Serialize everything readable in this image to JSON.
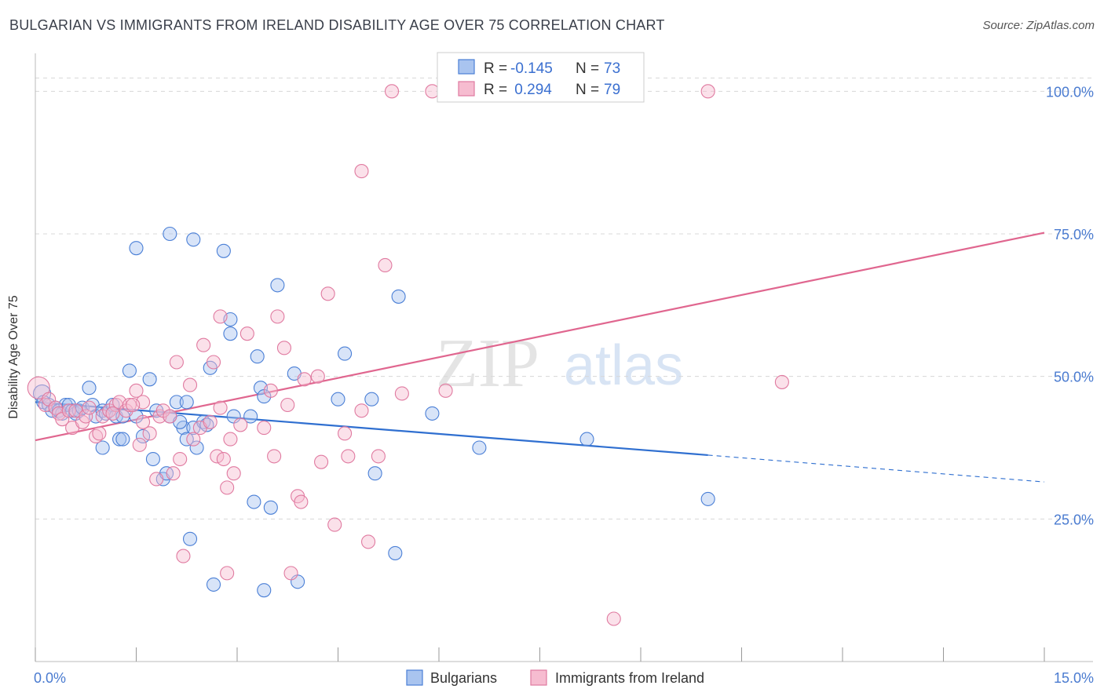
{
  "header": {
    "title": "BULGARIAN VS IMMIGRANTS FROM IRELAND DISABILITY AGE OVER 75 CORRELATION CHART",
    "source": "Source: ZipAtlas.com"
  },
  "watermark": {
    "zip": "ZIP",
    "atlas": "atlas"
  },
  "colors": {
    "blue": "#4a7fd6",
    "blue_fill": "#a9c4ef",
    "blue_line": "#2f6fd0",
    "pink": "#e07aa0",
    "pink_fill": "#f6bcd0",
    "pink_line": "#e0668f",
    "axis_text": "#4a7bd0",
    "grid": "#d8d8d8"
  },
  "legend_box": {
    "rows": [
      {
        "r_label": "R = ",
        "r_value": "-0.145",
        "n_label": "N = ",
        "n_value": "73",
        "series": "blue"
      },
      {
        "r_label": "R = ",
        "r_value": " 0.294",
        "n_label": "N = ",
        "n_value": "79",
        "series": "pink"
      }
    ]
  },
  "chart_data": {
    "type": "scatter",
    "xlabel": "",
    "ylabel": "Disability Age Over 75",
    "xlim": [
      0,
      15
    ],
    "ylim": [
      0,
      105
    ],
    "x_tick_labels": [
      "0.0%",
      "15.0%"
    ],
    "y_ticks": [
      25,
      50,
      75,
      100
    ],
    "y_tick_labels": [
      "25.0%",
      "50.0%",
      "75.0%",
      "100.0%"
    ],
    "grid": true,
    "legend_position": "bottom",
    "series": [
      {
        "name": "Bulgarians",
        "color": "blue",
        "trend": {
          "x0": 0,
          "y0": 45.5,
          "x1": 10.0,
          "y1": 36.2,
          "dash_to_x": 15,
          "dash_to_y": 31.5
        },
        "points": [
          [
            0.1,
            47
          ],
          [
            0.12,
            45.5
          ],
          [
            0.2,
            45
          ],
          [
            0.25,
            44
          ],
          [
            0.3,
            44.5
          ],
          [
            0.35,
            44
          ],
          [
            0.4,
            43.5
          ],
          [
            0.45,
            45
          ],
          [
            0.5,
            45
          ],
          [
            0.55,
            44
          ],
          [
            0.6,
            43.5
          ],
          [
            0.65,
            44
          ],
          [
            0.7,
            44.5
          ],
          [
            0.8,
            48
          ],
          [
            0.85,
            45
          ],
          [
            0.9,
            43
          ],
          [
            1.0,
            44
          ],
          [
            1.05,
            43.5
          ],
          [
            1.1,
            44
          ],
          [
            1.15,
            45
          ],
          [
            1.2,
            43
          ],
          [
            1.25,
            39
          ],
          [
            1.3,
            43
          ],
          [
            1.4,
            51
          ],
          [
            1.3,
            39
          ],
          [
            1.0,
            37.5
          ],
          [
            1.5,
            43
          ],
          [
            1.6,
            39.5
          ],
          [
            1.5,
            72.5
          ],
          [
            1.7,
            49.5
          ],
          [
            1.75,
            35.5
          ],
          [
            1.8,
            44
          ],
          [
            1.9,
            32
          ],
          [
            1.95,
            33
          ],
          [
            2.0,
            43
          ],
          [
            2.1,
            45.5
          ],
          [
            2.2,
            41
          ],
          [
            2.15,
            42
          ],
          [
            2.25,
            39
          ],
          [
            2.35,
            41
          ],
          [
            2.4,
            37.5
          ],
          [
            2.0,
            75
          ],
          [
            2.3,
            21.5
          ],
          [
            2.35,
            74
          ],
          [
            2.25,
            45.5
          ],
          [
            2.5,
            42
          ],
          [
            2.55,
            41.5
          ],
          [
            2.6,
            51.5
          ],
          [
            2.8,
            72
          ],
          [
            2.9,
            60
          ],
          [
            2.9,
            57.5
          ],
          [
            2.95,
            43
          ],
          [
            3.2,
            43
          ],
          [
            3.25,
            28
          ],
          [
            3.3,
            53.5
          ],
          [
            3.35,
            48
          ],
          [
            3.4,
            46.5
          ],
          [
            3.5,
            27
          ],
          [
            3.6,
            66
          ],
          [
            3.85,
            50.5
          ],
          [
            3.9,
            14
          ],
          [
            4.5,
            46
          ],
          [
            4.6,
            54
          ],
          [
            5.0,
            46
          ],
          [
            5.05,
            33
          ],
          [
            5.35,
            19
          ],
          [
            5.4,
            64
          ],
          [
            5.9,
            43.5
          ],
          [
            6.6,
            37.5
          ],
          [
            2.65,
            13.5
          ],
          [
            3.4,
            12.5
          ],
          [
            8.2,
            39
          ],
          [
            10.0,
            28.5
          ]
        ]
      },
      {
        "name": "Immigrants from Ireland",
        "color": "pink",
        "trend": {
          "x0": 0,
          "y0": 38.8,
          "x1": 15,
          "y1": 75.2
        },
        "points": [
          [
            0.05,
            48
          ],
          [
            0.15,
            45
          ],
          [
            0.2,
            46
          ],
          [
            0.3,
            44.5
          ],
          [
            0.35,
            43.5
          ],
          [
            0.4,
            42.5
          ],
          [
            0.5,
            44
          ],
          [
            0.55,
            41
          ],
          [
            0.6,
            44
          ],
          [
            0.7,
            42
          ],
          [
            0.75,
            43
          ],
          [
            0.8,
            44.5
          ],
          [
            0.9,
            39.5
          ],
          [
            1.0,
            43
          ],
          [
            1.1,
            44
          ],
          [
            1.2,
            45
          ],
          [
            1.25,
            45.5
          ],
          [
            1.35,
            44
          ],
          [
            1.4,
            45
          ],
          [
            1.5,
            47.5
          ],
          [
            1.55,
            38
          ],
          [
            1.6,
            42
          ],
          [
            1.7,
            40
          ],
          [
            1.8,
            32
          ],
          [
            1.85,
            43
          ],
          [
            1.9,
            44
          ],
          [
            2.0,
            43
          ],
          [
            2.05,
            33
          ],
          [
            2.1,
            52.5
          ],
          [
            2.15,
            35.5
          ],
          [
            2.2,
            18.5
          ],
          [
            2.3,
            48.5
          ],
          [
            2.35,
            39
          ],
          [
            2.45,
            41
          ],
          [
            2.5,
            55.5
          ],
          [
            2.6,
            42
          ],
          [
            2.65,
            52.5
          ],
          [
            2.7,
            36
          ],
          [
            2.75,
            60.5
          ],
          [
            2.8,
            35.5
          ],
          [
            2.85,
            30.5
          ],
          [
            2.9,
            39
          ],
          [
            2.95,
            33
          ],
          [
            3.05,
            41.5
          ],
          [
            3.15,
            57.5
          ],
          [
            3.4,
            41
          ],
          [
            3.5,
            47.5
          ],
          [
            3.55,
            36
          ],
          [
            3.6,
            60.5
          ],
          [
            3.7,
            55
          ],
          [
            3.75,
            45
          ],
          [
            3.8,
            15.5
          ],
          [
            3.9,
            29
          ],
          [
            3.95,
            28
          ],
          [
            4.0,
            49.5
          ],
          [
            4.2,
            50
          ],
          [
            4.25,
            35
          ],
          [
            4.35,
            64.5
          ],
          [
            4.45,
            24
          ],
          [
            4.6,
            40
          ],
          [
            4.65,
            36
          ],
          [
            4.85,
            44
          ],
          [
            4.85,
            86
          ],
          [
            4.95,
            21
          ],
          [
            5.1,
            36
          ],
          [
            5.2,
            69.5
          ],
          [
            5.3,
            100
          ],
          [
            5.45,
            47
          ],
          [
            5.9,
            100
          ],
          [
            6.1,
            47.5
          ],
          [
            2.85,
            15.5
          ],
          [
            8.6,
            7.5
          ],
          [
            10.0,
            100
          ],
          [
            11.1,
            49
          ],
          [
            1.6,
            45.5
          ],
          [
            1.45,
            45
          ],
          [
            0.95,
            40
          ],
          [
            1.15,
            43.5
          ],
          [
            2.75,
            44.5
          ]
        ]
      }
    ]
  }
}
